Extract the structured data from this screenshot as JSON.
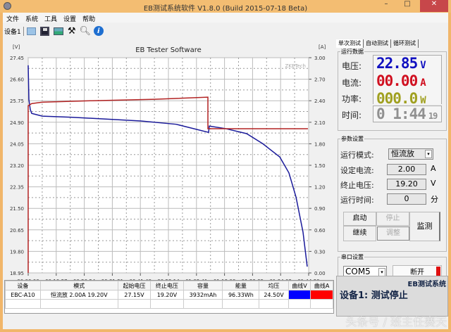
{
  "window": {
    "title": "EB测试系统软件 V1.8.0 (Build 2015-07-18 Beta)",
    "minimize": "–",
    "maximize": "□",
    "close": "✕"
  },
  "menu": [
    "文件",
    "系统",
    "工具",
    "设置",
    "帮助"
  ],
  "toolbar": {
    "device": "设备1",
    "icons": [
      "folder-icon",
      "save-icon",
      "image-icon",
      "tools-icon",
      "magnifier-icon",
      "info-icon"
    ]
  },
  "chart_data": {
    "type": "line",
    "title": "EB Tester Software",
    "watermark": "ZKETech",
    "ylabel": "[V]",
    "y2label": "[A]",
    "ylim": [
      18.95,
      27.45
    ],
    "y2lim": [
      0,
      3
    ],
    "yticks": [
      "27.45",
      "26.60",
      "25.75",
      "24.90",
      "24.05",
      "23.20",
      "22.35",
      "21.50",
      "20.65",
      "19.80",
      "18.95"
    ],
    "y2ticks": [
      "3.00",
      "2.70",
      "2.40",
      "2.10",
      "1.80",
      "1.50",
      "1.20",
      "0.90",
      "0.60",
      "0.30",
      "0.00"
    ],
    "xticks": [
      "00:00:00",
      "00:10:27",
      "00:20:54",
      "00:31:21",
      "00:41:48",
      "00:52:14",
      "01:02:41",
      "01:13:08",
      "01:23:35",
      "01:34:02",
      "01:44:29"
    ],
    "xlim": [
      "00:00:00",
      "01:44:29"
    ],
    "grid": true,
    "series": [
      {
        "axis": "left",
        "color": "#1a1a9a",
        "points": [
          [
            "00:00:00",
            27.15
          ],
          [
            "00:00:16",
            25.8
          ],
          [
            "00:00:47",
            25.4
          ],
          [
            "00:01:19",
            25.25
          ],
          [
            "00:05:15",
            25.14
          ],
          [
            "00:15:45",
            25.1
          ],
          [
            "00:42:00",
            24.95
          ],
          [
            "00:55:08",
            24.82
          ],
          [
            "01:07:12",
            24.5
          ],
          [
            "01:07:28",
            24.75
          ],
          [
            "01:13:30",
            24.65
          ],
          [
            "01:21:23",
            24.45
          ],
          [
            "01:27:25",
            24.05
          ],
          [
            "01:33:43",
            23.53
          ],
          [
            "01:37:08",
            22.9
          ],
          [
            "01:39:46",
            21.95
          ],
          [
            "01:42:23",
            20.56
          ],
          [
            "01:43:57",
            19.2
          ]
        ]
      },
      {
        "axis": "right",
        "color": "#b22222",
        "points": [
          [
            "00:00:00",
            0
          ],
          [
            "00:00:00",
            2.33
          ],
          [
            "00:01:19",
            2.36
          ],
          [
            "00:05:15",
            2.38
          ],
          [
            "00:23:38",
            2.4
          ],
          [
            "00:47:15",
            2.42
          ],
          [
            "01:06:57",
            2.45
          ],
          [
            "01:06:57",
            2.01
          ],
          [
            "01:44:13",
            2.01
          ]
        ]
      }
    ]
  },
  "table": {
    "headers": [
      "设备",
      "模式",
      "起始电压",
      "终止电压",
      "容量",
      "能量",
      "均压",
      "曲线V",
      "曲线A"
    ],
    "rows": [
      [
        "EBC-A10",
        "恒流放 2.00A 19.20V",
        "27.15V",
        "19.20V",
        "3932mAh",
        "96.33Wh",
        "24.50V",
        "#0000ff",
        "#ff0000"
      ]
    ]
  },
  "right": {
    "tabs": [
      "单次测试",
      "自动测试",
      "循环测试"
    ],
    "run_data": {
      "legend": "运行数据",
      "voltage_label": "电压:",
      "voltage": "22.85",
      "voltage_unit": "V",
      "current_label": "电流:",
      "current": "00.00",
      "current_unit": "A",
      "power_label": "功率:",
      "power": "000.0",
      "power_unit": "W",
      "time_label": "时间:",
      "time": "0 1:44",
      "time_sec": "19"
    },
    "params": {
      "legend": "参数设置",
      "mode_label": "运行模式:",
      "mode": "恒流放",
      "current_label": "设定电流:",
      "current": "2.00",
      "current_unit": "A",
      "cutoff_label": "终止电压:",
      "cutoff": "19.20",
      "cutoff_unit": "V",
      "runtime_label": "运行时间:",
      "runtime": "0",
      "runtime_unit": "分"
    },
    "buttons": {
      "start": "启动",
      "stop": "停止",
      "continue": "继续",
      "adjust": "调整",
      "monitor": "监测"
    },
    "serial": {
      "legend": "串口设置",
      "port": "COM5",
      "disconnect": "断开"
    },
    "status": {
      "title": "EB测试系统",
      "message": "设备1: 测试停止"
    }
  },
  "colors": {
    "voltage": "#1010c0",
    "current": "#d01020",
    "power": "#a0a020",
    "time": "#909090"
  },
  "watermark": "头条号 / 班主任赛天"
}
